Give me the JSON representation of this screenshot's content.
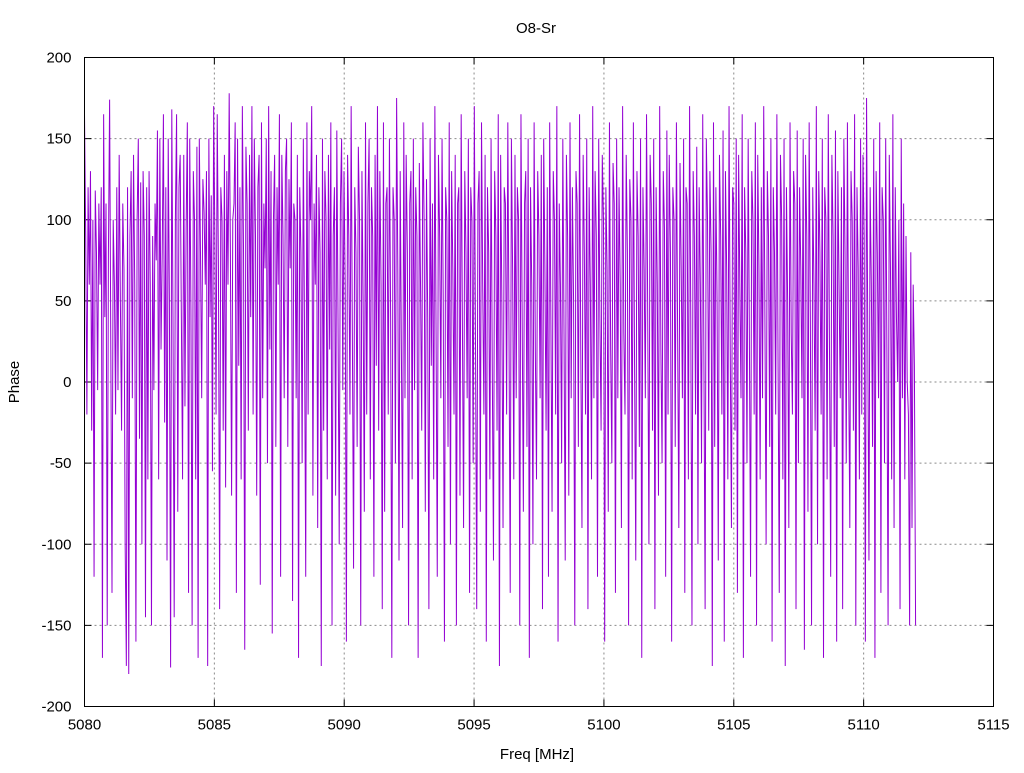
{
  "chart_data": {
    "type": "line",
    "title": "O8-Sr",
    "xlabel": "Freq [MHz]",
    "ylabel": "Phase",
    "xlim": [
      5080,
      5115
    ],
    "ylim": [
      -200,
      200
    ],
    "x_ticks": [
      5080,
      5085,
      5090,
      5095,
      5100,
      5105,
      5110,
      5115
    ],
    "y_ticks": [
      -200,
      -150,
      -100,
      -50,
      0,
      50,
      100,
      150,
      200
    ],
    "grid": true,
    "legend": "none",
    "series_color": "#9400d3",
    "series": [
      {
        "x_start": 5080,
        "x_end": 5112,
        "values": [
          165,
          90,
          -20,
          120,
          60,
          130,
          -30,
          100,
          -120,
          118,
          80,
          -5,
          110,
          60,
          120,
          -170,
          165,
          40,
          110,
          -150,
          80,
          174,
          20,
          -130,
          100,
          60,
          -20,
          120,
          -5,
          140,
          50,
          -30,
          110,
          70,
          -100,
          -175,
          120,
          -180,
          90,
          130,
          -10,
          140,
          60,
          -160,
          100,
          150,
          -35,
          123,
          -100,
          130,
          90,
          -145,
          120,
          -60,
          130,
          60,
          -150,
          90,
          -5,
          110,
          75,
          155,
          -60,
          150,
          20,
          80,
          165,
          -25,
          120,
          -110,
          150,
          50,
          -176,
          168,
          40,
          -145,
          100,
          165,
          -80,
          120,
          140,
          40,
          -60,
          140,
          -15,
          95,
          160,
          -130,
          150,
          45,
          -150,
          130,
          100,
          -60,
          145,
          -170,
          150,
          80,
          -10,
          125,
          105,
          60,
          130,
          -175,
          150,
          40,
          115,
          -55,
          170,
          90,
          -20,
          165,
          70,
          -140,
          120,
          100,
          -30,
          140,
          -65,
          130,
          60,
          178,
          80,
          -70,
          100,
          110,
          160,
          -130,
          150,
          10,
          120,
          -60,
          170,
          80,
          -165,
          145,
          110,
          -30,
          140,
          40,
          170,
          -20,
          150,
          90,
          -70,
          120,
          140,
          -125,
          160,
          -10,
          110,
          70,
          150,
          -50,
          170,
          20,
          130,
          -155,
          100,
          140,
          -40,
          120,
          60,
          165,
          -120,
          140,
          90,
          -10,
          130,
          150,
          -40,
          125,
          70,
          160,
          -135,
          110,
          100,
          -10,
          140,
          -170,
          120,
          80,
          -50,
          150,
          30,
          -120,
          160,
          -20,
          130,
          100,
          170,
          -70,
          110,
          60,
          140,
          -90,
          120,
          80,
          -175,
          150,
          -30,
          130,
          100,
          -60,
          140,
          20,
          160,
          -150,
          90,
          120,
          -70,
          155,
          40,
          -100,
          110,
          150,
          -5,
          130,
          60,
          -160,
          140,
          90,
          -20,
          170,
          30,
          -115,
          120,
          80,
          -40,
          145,
          100,
          -150,
          130,
          50,
          -80,
          160,
          -20,
          110,
          150,
          -60,
          120,
          90,
          -120,
          140,
          10,
          170,
          -30,
          130,
          60,
          -140,
          160,
          -80,
          110,
          120,
          -20,
          150,
          40,
          -170,
          120,
          100,
          -50,
          175,
          70,
          -110,
          130,
          20,
          -90,
          160,
          -10,
          140,
          80,
          -150,
          110,
          130,
          -60,
          150,
          -5,
          120,
          90,
          -170,
          135,
          60,
          -30,
          160,
          100,
          -80,
          125,
          40,
          -140,
          150,
          10,
          110,
          -60,
          170,
          30,
          -120,
          140,
          90,
          -10,
          150,
          50,
          -160,
          120,
          100,
          -40,
          160,
          -100,
          130,
          70,
          -20,
          140,
          -150,
          110,
          120,
          -70,
          165,
          40,
          -90,
          130,
          80,
          -10,
          150,
          -130,
          120,
          100,
          -50,
          170,
          20,
          -140,
          110,
          130,
          -80,
          160,
          60,
          -20,
          140,
          -160,
          120,
          80,
          -60,
          150,
          10,
          -110,
          130,
          90,
          -30,
          165,
          -175,
          140,
          50,
          -90,
          120,
          110,
          -20,
          160,
          30,
          -130,
          150,
          70,
          -60,
          140,
          -10,
          120,
          100,
          -150,
          165,
          40,
          -80,
          110,
          130,
          -40,
          150,
          -170,
          120,
          60,
          -100,
          160,
          20,
          -60,
          130,
          90,
          -10,
          140,
          -140,
          150,
          70,
          -30,
          120,
          -120,
          160,
          40,
          -80,
          130,
          100,
          -20,
          170,
          -160,
          110,
          60,
          -50,
          150,
          30,
          -110,
          140,
          90,
          -70,
          160,
          -10,
          120,
          50,
          -150,
          130,
          110,
          -40,
          165,
          20,
          -90,
          140,
          80,
          -20,
          150,
          -140,
          120,
          60,
          -60,
          170,
          -10,
          130,
          90,
          -120,
          150,
          40,
          -30,
          140,
          100,
          -160,
          120,
          70,
          -80,
          160,
          20,
          -50,
          135,
          110,
          -130,
          150,
          -10,
          120,
          60,
          -90,
          170,
          30,
          -20,
          140,
          80,
          -150,
          125,
          100,
          -60,
          160,
          10,
          -110,
          130,
          90,
          -40,
          150,
          -170,
          120,
          70,
          -10,
          165,
          40,
          -100,
          140,
          110,
          -30,
          150,
          -140,
          120,
          60,
          -70,
          170,
          20,
          -50,
          130,
          95,
          -120,
          155,
          -20,
          140,
          80,
          -160,
          120,
          100,
          -40,
          160,
          30,
          -90,
          135,
          70,
          -10,
          150,
          -130,
          120,
          110,
          -60,
          170,
          40,
          -150,
          130,
          90,
          -20,
          145,
          -100,
          120,
          60,
          -50,
          165,
          10,
          -140,
          150,
          100,
          -30,
          130,
          80,
          -175,
          160,
          -40,
          120,
          50,
          -110,
          140,
          90,
          -20,
          155,
          -160,
          130,
          70,
          -60,
          170,
          20,
          -90,
          120,
          110,
          -30,
          150,
          -130,
          140,
          60,
          -10,
          165,
          -170,
          120,
          80,
          -50,
          150,
          30,
          -120,
          130,
          100,
          -20,
          160,
          -150,
          140,
          70,
          -60,
          120,
          -10,
          170,
          40,
          -100,
          130,
          90,
          -40,
          150,
          -160,
          120,
          80,
          -20,
          165,
          10,
          -130,
          140,
          100,
          -60,
          150,
          -175,
          120,
          50,
          -90,
          160,
          30,
          -20,
          130,
          110,
          -140,
          155,
          -50,
          120,
          70,
          -10,
          150,
          -165,
          140,
          90,
          -80,
          160,
          40,
          -150,
          120,
          60,
          -30,
          170,
          -100,
          130,
          80,
          -20,
          150,
          -170,
          120,
          100,
          -60,
          165,
          20,
          -120,
          140,
          90,
          -40,
          155,
          -160,
          130,
          60,
          -10,
          120,
          -140,
          150,
          80,
          -50,
          160,
          10,
          -90,
          130,
          100,
          -30,
          165,
          -150,
          120,
          70,
          -60,
          150,
          -20,
          140,
          90,
          -160,
          175,
          30,
          -110,
          120,
          60,
          -40,
          150,
          -170,
          130,
          80,
          -10,
          160,
          -130,
          120,
          100,
          -50,
          150,
          20,
          -150,
          140,
          70,
          -60,
          165,
          -90,
          120,
          40,
          0,
          100,
          -140,
          150,
          -10,
          110,
          -60,
          90,
          0,
          -20,
          -150,
          80,
          -90,
          60,
          10,
          -150
        ]
      }
    ]
  }
}
